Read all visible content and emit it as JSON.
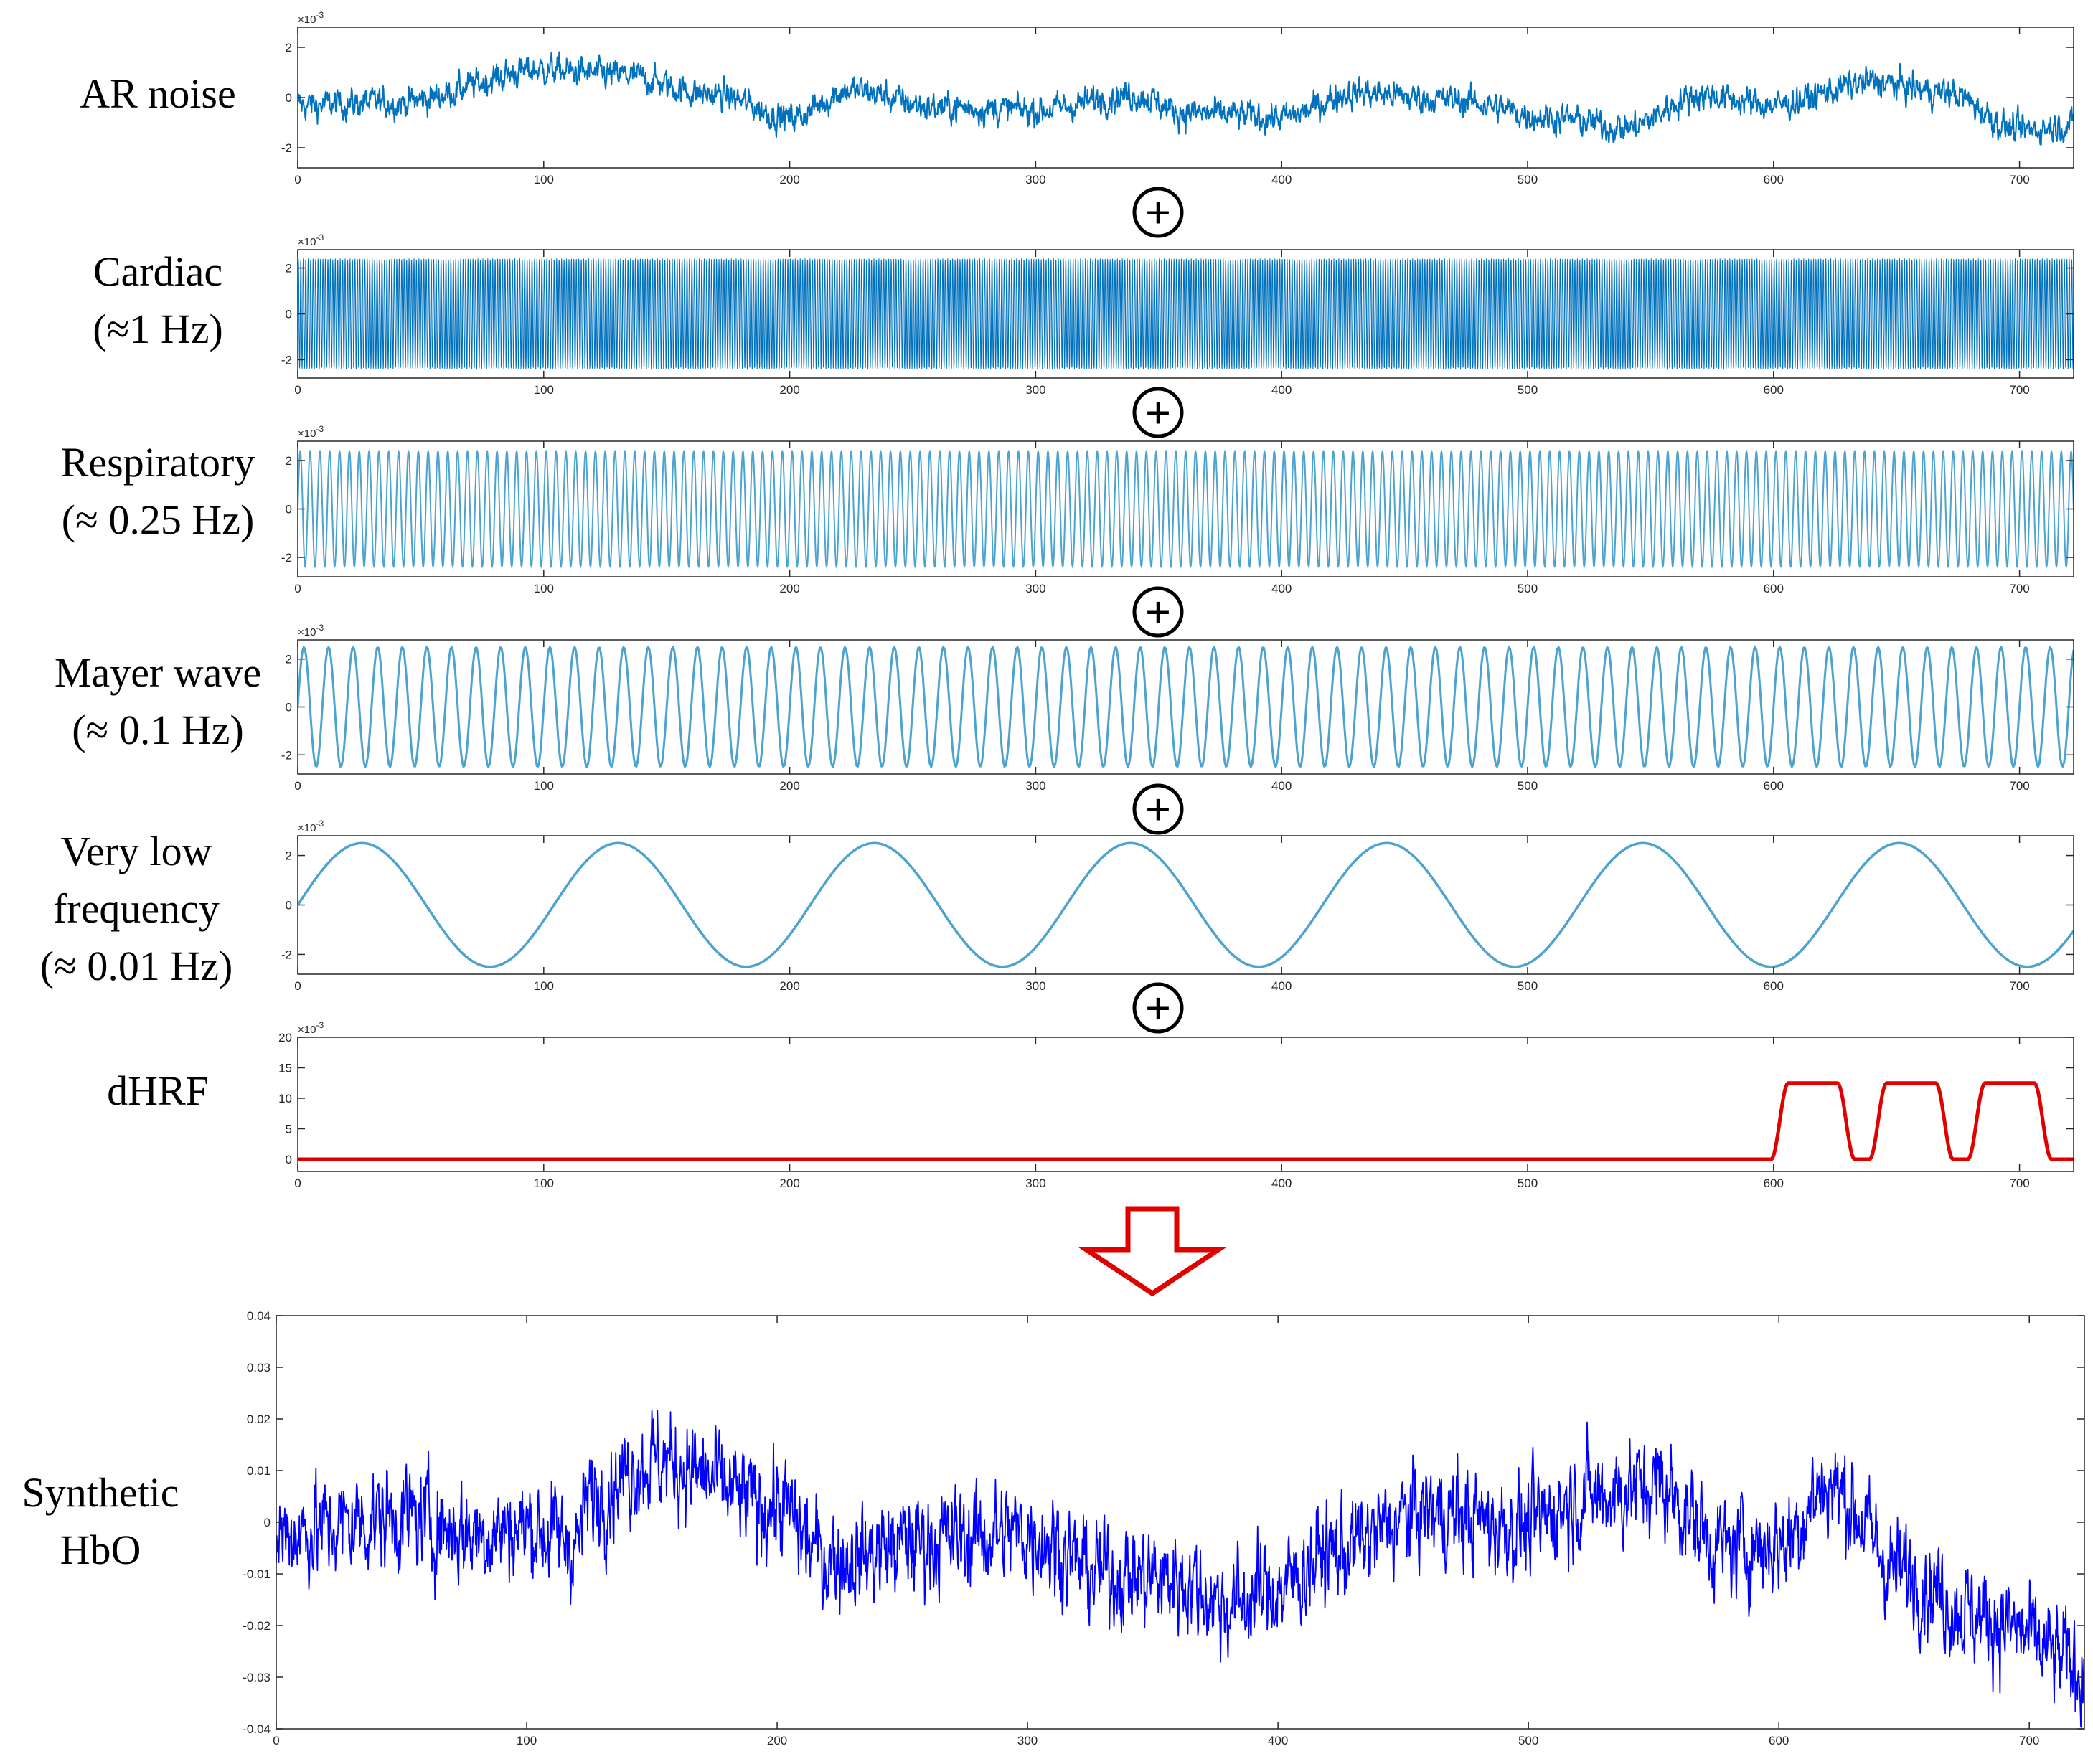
{
  "figure": {
    "plus_symbol": "+",
    "colors": {
      "component_line": "#0072BD",
      "sine_line": "#4DA3CF",
      "dhrf_line": "#E00000",
      "result_line": "#0000FF",
      "arrow": "#E00000",
      "axis": "#262626"
    }
  },
  "chart_data": [
    {
      "id": "ar-noise",
      "type": "line",
      "label_lines": [
        "AR noise"
      ],
      "y_exponent": "×10",
      "y_exponent_power": "-3",
      "xlim": [
        0,
        722
      ],
      "ylim": [
        -2.8,
        2.8
      ],
      "x_ticks": [
        "0",
        "100",
        "200",
        "300",
        "400",
        "500",
        "600",
        "700"
      ],
      "y_ticks": [
        "2",
        "0",
        "-2"
      ],
      "signal": {
        "kind": "noise_trend",
        "noise_amp": 0.45,
        "trend": [
          [
            0,
            -0.3
          ],
          [
            40,
            -0.2
          ],
          [
            100,
            1.1
          ],
          [
            130,
            0.9
          ],
          [
            170,
            0.1
          ],
          [
            200,
            -0.8
          ],
          [
            225,
            0.3
          ],
          [
            260,
            -0.4
          ],
          [
            300,
            -0.5
          ],
          [
            340,
            0.1
          ],
          [
            360,
            -0.6
          ],
          [
            400,
            -0.8
          ],
          [
            430,
            0.2
          ],
          [
            470,
            -0.1
          ],
          [
            510,
            -0.8
          ],
          [
            540,
            -1.2
          ],
          [
            570,
            0.1
          ],
          [
            600,
            -0.3
          ],
          [
            640,
            0.6
          ],
          [
            670,
            0.2
          ],
          [
            700,
            -1.3
          ],
          [
            722,
            -1.1
          ]
        ]
      }
    },
    {
      "id": "cardiac",
      "type": "line",
      "label_lines": [
        "Cardiac",
        "(≈1 Hz)"
      ],
      "y_exponent": "×10",
      "y_exponent_power": "-3",
      "xlim": [
        0,
        722
      ],
      "ylim": [
        -2.8,
        2.8
      ],
      "x_ticks": [
        "0",
        "100",
        "200",
        "300",
        "400",
        "500",
        "600",
        "700"
      ],
      "y_ticks": [
        "2",
        "0",
        "-2"
      ],
      "signal": {
        "kind": "sine",
        "amp": 2.4,
        "freq_hz": 1.0,
        "phase": 0
      }
    },
    {
      "id": "respiratory",
      "type": "line",
      "label_lines": [
        "Respiratory",
        "(≈ 0.25 Hz)"
      ],
      "y_exponent": "×10",
      "y_exponent_power": "-3",
      "xlim": [
        0,
        722
      ],
      "ylim": [
        -2.8,
        2.8
      ],
      "x_ticks": [
        "0",
        "100",
        "200",
        "300",
        "400",
        "500",
        "600",
        "700"
      ],
      "y_ticks": [
        "2",
        "0",
        "-2"
      ],
      "signal": {
        "kind": "sine",
        "amp": 2.4,
        "freq_hz": 0.25,
        "phase": 0
      }
    },
    {
      "id": "mayer",
      "type": "line",
      "label_lines": [
        "Mayer wave",
        "(≈ 0.1 Hz)"
      ],
      "y_exponent": "×10",
      "y_exponent_power": "-3",
      "xlim": [
        0,
        722
      ],
      "ylim": [
        -2.8,
        2.8
      ],
      "x_ticks": [
        "0",
        "100",
        "200",
        "300",
        "400",
        "500",
        "600",
        "700"
      ],
      "y_ticks": [
        "2",
        "0",
        "-2"
      ],
      "signal": {
        "kind": "sine",
        "amp": 2.5,
        "freq_hz": 0.1,
        "phase": 0
      }
    },
    {
      "id": "very-low-frequency",
      "type": "line",
      "label_lines": [
        "Very low",
        "frequency",
        "(≈ 0.01 Hz)"
      ],
      "y_exponent": "×10",
      "y_exponent_power": "-3",
      "xlim": [
        0,
        722
      ],
      "ylim": [
        -2.8,
        2.8
      ],
      "x_ticks": [
        "0",
        "100",
        "200",
        "300",
        "400",
        "500",
        "600",
        "700"
      ],
      "y_ticks": [
        "2",
        "0",
        "-2"
      ],
      "signal": {
        "kind": "sine",
        "amp": 2.5,
        "freq_hz": 0.0096,
        "phase": 0
      }
    },
    {
      "id": "dhrf",
      "type": "line",
      "label_lines": [
        "dHRF"
      ],
      "y_exponent": "×10",
      "y_exponent_power": "-3",
      "xlim": [
        0,
        722
      ],
      "ylim": [
        -2,
        20
      ],
      "x_ticks": [
        "0",
        "100",
        "200",
        "300",
        "400",
        "500",
        "600",
        "700"
      ],
      "y_ticks": [
        "20",
        "15",
        "10",
        "5",
        "0"
      ],
      "signal": {
        "kind": "blocks",
        "height": 12.5,
        "baseline": 0,
        "blocks": [
          [
            606,
            626
          ],
          [
            646,
            666
          ],
          [
            686,
            706
          ]
        ],
        "rise": 7
      }
    },
    {
      "id": "synthetic-hbo",
      "type": "line",
      "label_lines": [
        "Synthetic",
        "HbO"
      ],
      "y_exponent": "",
      "y_exponent_power": "",
      "xlim": [
        0,
        722
      ],
      "ylim": [
        -0.04,
        0.04
      ],
      "x_ticks": [
        "0",
        "100",
        "200",
        "300",
        "400",
        "500",
        "600",
        "700"
      ],
      "y_ticks": [
        "0.04",
        "0.03",
        "0.02",
        "0.01",
        "0",
        "-0.01",
        "-0.02",
        "-0.03",
        "-0.04"
      ],
      "signal": {
        "kind": "noise_trend",
        "noise_amp": 0.0075,
        "trend": [
          [
            0,
            -0.002
          ],
          [
            50,
            0.001
          ],
          [
            80,
            -0.002
          ],
          [
            100,
            -0.001
          ],
          [
            120,
            -0.004
          ],
          [
            125,
            0.005
          ],
          [
            150,
            0.012
          ],
          [
            200,
            0.003
          ],
          [
            220,
            -0.007
          ],
          [
            270,
            -0.003
          ],
          [
            300,
            -0.002
          ],
          [
            330,
            -0.01
          ],
          [
            360,
            -0.011
          ],
          [
            380,
            -0.016
          ],
          [
            400,
            -0.013
          ],
          [
            420,
            -0.006
          ],
          [
            460,
            0.002
          ],
          [
            500,
            -0.001
          ],
          [
            520,
            0.005
          ],
          [
            550,
            0.007
          ],
          [
            580,
            -0.005
          ],
          [
            600,
            -0.004
          ],
          [
            620,
            0.007
          ],
          [
            650,
            -0.01
          ],
          [
            680,
            -0.018
          ],
          [
            722,
            -0.028
          ]
        ]
      }
    }
  ]
}
